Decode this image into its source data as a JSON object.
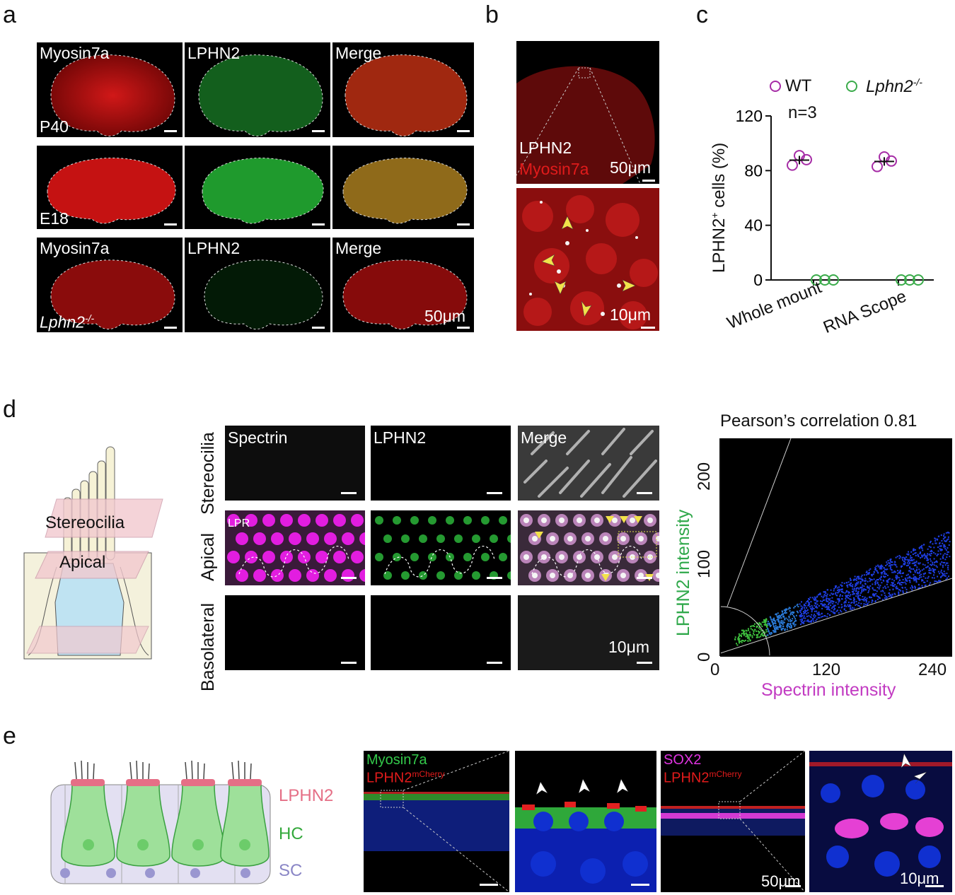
{
  "panel_letters": {
    "a": "a",
    "b": "b",
    "c": "c",
    "d": "d",
    "e": "e"
  },
  "panel_a": {
    "row1": {
      "col1": "Myosin7a",
      "col2": "LPHN2",
      "col3": "Merge",
      "age": "P40"
    },
    "row2": {
      "age": "E18"
    },
    "row3": {
      "col1": "Myosin7a",
      "col2": "LPHN2",
      "col3": "Merge",
      "genotype": "Lphn2",
      "genotype_sup": "-/-",
      "scale": "50μm"
    }
  },
  "panel_b": {
    "label1": "LPHN2",
    "label2": "Myosin7a",
    "scale1": "50μm",
    "scale2": "10μm"
  },
  "panel_c": {
    "chart_data": {
      "type": "scatter",
      "ylabel_main": "LPHN2",
      "ylabel_sup": "+",
      "ylabel_rest": " cells (%)",
      "categories": [
        "Whole mount",
        "RNA Scope"
      ],
      "y_ticks": [
        "0",
        "40",
        "80",
        "120"
      ],
      "ylim": [
        0,
        120
      ],
      "annotation": "n=3",
      "series": [
        {
          "name": "WT",
          "color": "#a62ca6",
          "points": [
            [
              84,
              91,
              88
            ],
            [
              83,
              90,
              87
            ]
          ],
          "means": [
            87.7,
            86.7
          ]
        },
        {
          "name_main": "Lphn2",
          "name_sup": "-/-",
          "color": "#3aab4a",
          "points": [
            [
              0,
              0,
              0
            ],
            [
              0,
              0,
              0
            ]
          ],
          "means": [
            0,
            0
          ]
        }
      ]
    }
  },
  "panel_d": {
    "schematic": {
      "stereo": "Stereocilia",
      "apical": "Apical",
      "baso": "Basolateral"
    },
    "rows": [
      "Stereocilia",
      "Apical",
      "Basolateral"
    ],
    "cols": [
      "Spectrin",
      "LPHN2",
      "Merge"
    ],
    "lpr": "LPR",
    "scale": "10μm",
    "scatter": {
      "title": "Pearson’s correlation 0.81",
      "xlabel": "Spectrin intensity",
      "ylabel": "LPHN2 intensity",
      "x_ticks": [
        "0",
        "120",
        "240"
      ],
      "y_ticks": [
        "0",
        "100",
        "200"
      ],
      "xlabel_color": "#c23bc2",
      "ylabel_color": "#2fa84a"
    }
  },
  "panel_e": {
    "legend": {
      "lphn2": "LPHN2",
      "hc": "HC",
      "sc": "SC"
    },
    "legend_colors": {
      "lphn2": "#e56f86",
      "hc": "#33a83b",
      "sc": "#8a86c6"
    },
    "img1": {
      "l1": "Myosin7a",
      "l2": "LPHN2",
      "l2_sup": "mCherry"
    },
    "img3": {
      "l1": "SOX2",
      "l2": "LPHN2",
      "l2_sup": "mCherry",
      "scale": "50μm"
    },
    "img4": {
      "scale": "10μm"
    }
  }
}
